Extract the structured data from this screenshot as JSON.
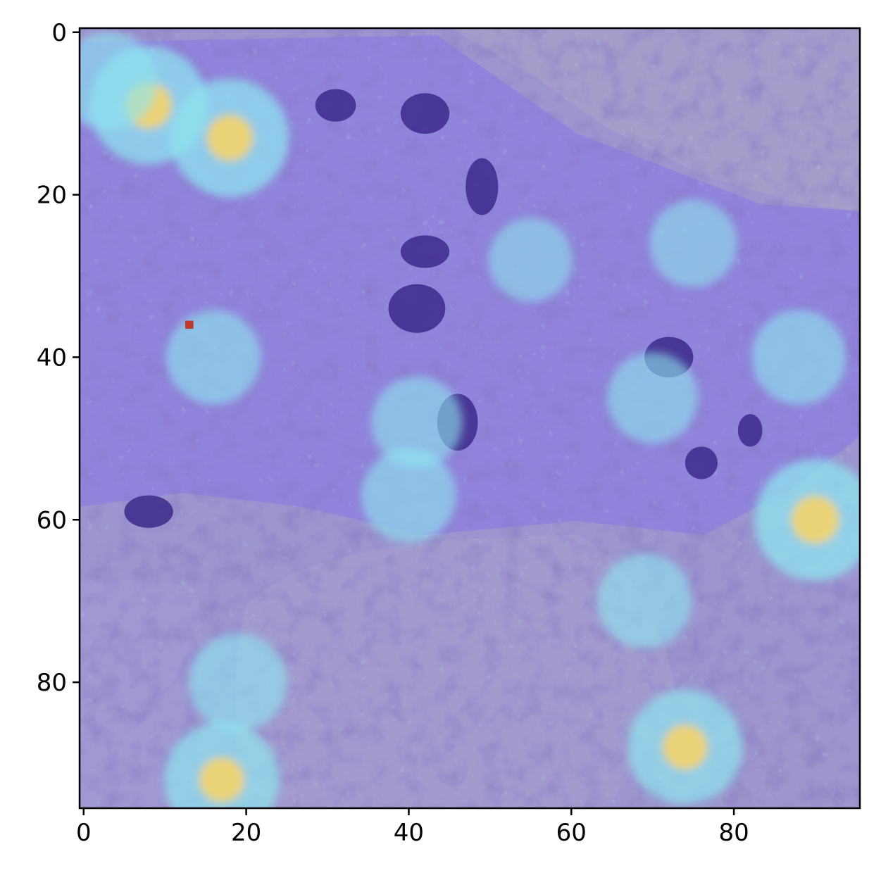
{
  "chart_data": {
    "type": "heatmap",
    "description_kind": "image heatmap overlay (histology patch with attention map)",
    "image_extent": {
      "x": [
        -0.5,
        95.5
      ],
      "y": [
        95.5,
        -0.5
      ]
    },
    "xlim": [
      -0.5,
      95.5
    ],
    "ylim": [
      95.5,
      -0.5
    ],
    "x_ticks": [
      0,
      20,
      40,
      60,
      80
    ],
    "y_ticks": [
      0,
      20,
      40,
      60,
      80
    ],
    "x_tick_labels": [
      "0",
      "20",
      "40",
      "60",
      "80"
    ],
    "y_tick_labels": [
      "0",
      "20",
      "40",
      "60",
      "80"
    ],
    "title": "",
    "xlabel": "",
    "ylabel": "",
    "grid": false,
    "colors": {
      "background_tissue": "#9c95cf",
      "overlay_low": "#6e64f0",
      "overlay_mid": "#8fe6f0",
      "overlay_high": "#f4d36a",
      "nucleus": "#3c2a8a",
      "marker": "#c0392b"
    },
    "hotspots": [
      {
        "x": 8,
        "y": 9,
        "level": 0.9
      },
      {
        "x": 18,
        "y": 13,
        "level": 0.9
      },
      {
        "x": 3,
        "y": 6,
        "level": 0.6
      },
      {
        "x": 90,
        "y": 60,
        "level": 0.95
      },
      {
        "x": 74,
        "y": 88,
        "level": 0.85
      },
      {
        "x": 17,
        "y": 92,
        "level": 0.85
      },
      {
        "x": 19,
        "y": 80,
        "level": 0.6
      },
      {
        "x": 16,
        "y": 40,
        "level": 0.55
      },
      {
        "x": 41,
        "y": 48,
        "level": 0.5
      },
      {
        "x": 40,
        "y": 57,
        "level": 0.55
      },
      {
        "x": 70,
        "y": 45,
        "level": 0.5
      },
      {
        "x": 88,
        "y": 40,
        "level": 0.55
      },
      {
        "x": 69,
        "y": 70,
        "level": 0.55
      },
      {
        "x": 55,
        "y": 28,
        "level": 0.4
      },
      {
        "x": 75,
        "y": 26,
        "level": 0.45
      }
    ],
    "nuclei": [
      {
        "x": 41,
        "y": 34,
        "rx": 3.5,
        "ry": 3
      },
      {
        "x": 49,
        "y": 19,
        "rx": 2,
        "ry": 3.5
      },
      {
        "x": 42,
        "y": 10,
        "rx": 3,
        "ry": 2.5
      },
      {
        "x": 31,
        "y": 9,
        "rx": 2.5,
        "ry": 2
      },
      {
        "x": 46,
        "y": 48,
        "rx": 2.5,
        "ry": 3.5
      },
      {
        "x": 72,
        "y": 40,
        "rx": 3,
        "ry": 2.5
      },
      {
        "x": 82,
        "y": 49,
        "rx": 1.5,
        "ry": 2
      },
      {
        "x": 76,
        "y": 53,
        "rx": 2,
        "ry": 2
      },
      {
        "x": 42,
        "y": 27,
        "rx": 3,
        "ry": 2
      },
      {
        "x": 8,
        "y": 59,
        "rx": 3,
        "ry": 2
      }
    ],
    "marker": {
      "x": 13,
      "y": 36
    }
  }
}
